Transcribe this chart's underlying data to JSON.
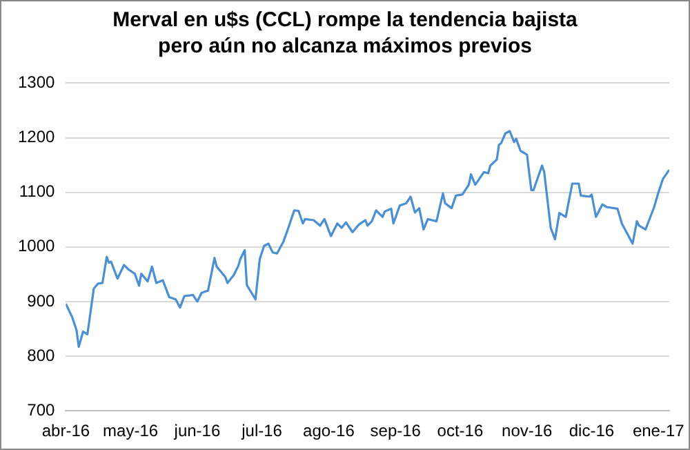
{
  "chart_data": {
    "type": "line",
    "title": "Merval en u$s (CCL) rompe la tendencia bajista pero aún no alcanza máximos previos",
    "x": [
      "2016-04-01",
      "2016-04-04",
      "2016-04-06",
      "2016-04-07",
      "2016-04-09",
      "2016-04-11",
      "2016-04-14",
      "2016-04-16",
      "2016-04-18",
      "2016-04-20",
      "2016-04-21",
      "2016-04-22",
      "2016-04-25",
      "2016-04-28",
      "2016-04-30",
      "2016-05-03",
      "2016-05-05",
      "2016-05-06",
      "2016-05-09",
      "2016-05-11",
      "2016-05-13",
      "2016-05-16",
      "2016-05-19",
      "2016-05-22",
      "2016-05-24",
      "2016-05-26",
      "2016-05-30",
      "2016-06-01",
      "2016-06-03",
      "2016-06-06",
      "2016-06-09",
      "2016-06-10",
      "2016-06-14",
      "2016-06-15",
      "2016-06-18",
      "2016-06-20",
      "2016-06-21",
      "2016-06-23",
      "2016-06-24",
      "2016-06-28",
      "2016-06-30",
      "2016-07-02",
      "2016-07-04",
      "2016-07-06",
      "2016-07-08",
      "2016-07-11",
      "2016-07-13",
      "2016-07-16",
      "2016-07-18",
      "2016-07-20",
      "2016-07-21",
      "2016-07-25",
      "2016-07-28",
      "2016-07-30",
      "2016-08-02",
      "2016-08-05",
      "2016-08-07",
      "2016-08-09",
      "2016-08-12",
      "2016-08-15",
      "2016-08-18",
      "2016-08-19",
      "2016-08-21",
      "2016-08-23",
      "2016-08-26",
      "2016-08-27",
      "2016-08-30",
      "2016-08-31",
      "2016-09-03",
      "2016-09-06",
      "2016-09-08",
      "2016-09-10",
      "2016-09-12",
      "2016-09-14",
      "2016-09-16",
      "2016-09-20",
      "2016-09-23",
      "2016-09-24",
      "2016-09-27",
      "2016-09-29",
      "2016-10-02",
      "2016-10-05",
      "2016-10-06",
      "2016-10-08",
      "2016-10-12",
      "2016-10-14",
      "2016-10-15",
      "2016-10-18",
      "2016-10-19",
      "2016-10-20",
      "2016-10-22",
      "2016-10-24",
      "2016-10-26",
      "2016-10-27",
      "2016-10-29",
      "2016-11-01",
      "2016-11-03",
      "2016-11-04",
      "2016-11-08",
      "2016-11-09",
      "2016-11-12",
      "2016-11-14",
      "2016-11-16",
      "2016-11-19",
      "2016-11-22",
      "2016-11-25",
      "2016-11-26",
      "2016-11-30",
      "2016-12-01",
      "2016-12-03",
      "2016-12-06",
      "2016-12-08",
      "2016-12-13",
      "2016-12-15",
      "2016-12-20",
      "2016-12-22",
      "2016-12-23",
      "2016-12-26",
      "2016-12-30",
      "2017-01-01",
      "2017-01-03",
      "2017-01-06"
    ],
    "series": [
      {
        "color": "#4a8fd4",
        "values": [
          896,
          871,
          847,
          817,
          845,
          840,
          924,
          933,
          934,
          982,
          971,
          973,
          942,
          967,
          959,
          951,
          929,
          951,
          937,
          964,
          934,
          939,
          908,
          904,
          889,
          910,
          912,
          900,
          916,
          920,
          980,
          964,
          945,
          934,
          949,
          965,
          978,
          994,
          930,
          904,
          978,
          1002,
          1006,
          990,
          988,
          1010,
          1032,
          1067,
          1066,
          1043,
          1051,
          1049,
          1039,
          1051,
          1020,
          1043,
          1035,
          1045,
          1027,
          1041,
          1049,
          1039,
          1047,
          1067,
          1055,
          1065,
          1070,
          1043,
          1076,
          1080,
          1092,
          1063,
          1071,
          1032,
          1051,
          1047,
          1098,
          1080,
          1071,
          1094,
          1096,
          1114,
          1133,
          1114,
          1137,
          1135,
          1149,
          1160,
          1187,
          1190,
          1208,
          1212,
          1192,
          1198,
          1176,
          1169,
          1104,
          1104,
          1149,
          1137,
          1035,
          1014,
          1062,
          1055,
          1116,
          1116,
          1094,
          1092,
          1096,
          1055,
          1078,
          1073,
          1070,
          1043,
          1006,
          1047,
          1039,
          1032,
          1073,
          1100,
          1124,
          1141
        ]
      }
    ],
    "xlim": [
      "2016-04-01",
      "2017-01-06"
    ],
    "xticks": [
      {
        "value": "2016-04",
        "label": "abr-16"
      },
      {
        "value": "2016-05",
        "label": "may-16"
      },
      {
        "value": "2016-06",
        "label": "jun-16"
      },
      {
        "value": "2016-07",
        "label": "jul-16"
      },
      {
        "value": "2016-08",
        "label": "ago-16"
      },
      {
        "value": "2016-09",
        "label": "sep-16"
      },
      {
        "value": "2016-10",
        "label": "oct-16"
      },
      {
        "value": "2016-11",
        "label": "nov-16"
      },
      {
        "value": "2016-12",
        "label": "dic-16"
      },
      {
        "value": "2017-01",
        "label": "ene-17"
      }
    ],
    "ylim": [
      700,
      1300
    ],
    "yticks": [
      700,
      800,
      900,
      1000,
      1100,
      1200,
      1300
    ],
    "grid": "y",
    "legend": false,
    "marker": "none",
    "line_style": "solid"
  }
}
